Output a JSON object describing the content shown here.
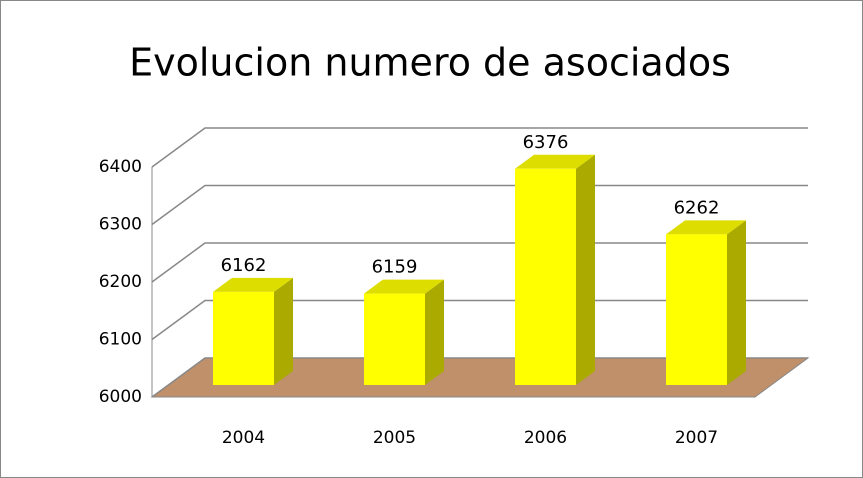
{
  "chart_data": {
    "type": "bar",
    "title": "Evolucion numero de asociados",
    "categories": [
      "2004",
      "2005",
      "2006",
      "2007"
    ],
    "values": [
      6162,
      6159,
      6376,
      6262
    ],
    "color": "#ffff00",
    "ylim": [
      6000,
      6400
    ],
    "yticks": [
      6000,
      6100,
      6200,
      6300,
      6400
    ],
    "grid": true
  }
}
